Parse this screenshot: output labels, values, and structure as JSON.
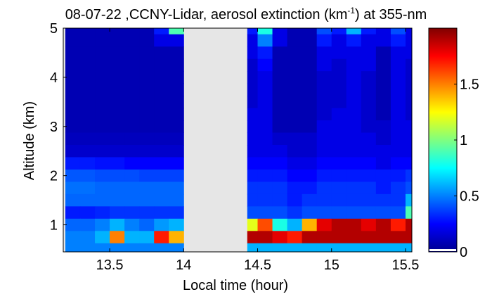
{
  "chart_data": {
    "type": "heatmap",
    "title": {
      "main": "08-07-22 ,CCNY-Lidar, aerosol extinction (km",
      "sup": "-1",
      "tail": ") at 355-nm"
    },
    "xlabel": "Local time (hour)",
    "ylabel": "Altitude (km)",
    "xlim": [
      13.186,
      15.543
    ],
    "ylim": [
      0.45,
      5
    ],
    "clim": [
      0,
      2
    ],
    "colormap": "jet",
    "missing_color": "#e6e6e6",
    "gap": [
      14.0,
      14.43
    ],
    "xticks": [
      13.5,
      14,
      14.5,
      15,
      15.5
    ],
    "xtick_labels": [
      "13.5",
      "14",
      "14.5",
      "15",
      "15.5"
    ],
    "yticks": [
      1,
      2,
      3,
      4,
      5
    ],
    "ytick_labels": [
      "1",
      "2",
      "3",
      "4",
      "5"
    ],
    "cbar_ticks": [
      0,
      0.5,
      1,
      1.5
    ],
    "cbar_tick_labels": [
      "0",
      "0.5",
      "1",
      "1.5"
    ],
    "times": [
      13.25,
      13.35,
      13.45,
      13.55,
      13.65,
      13.75,
      13.85,
      13.95,
      14.45,
      14.55,
      14.65,
      14.75,
      14.85,
      14.95,
      15.05,
      15.15,
      15.25,
      15.35,
      15.45,
      15.55
    ],
    "altitudes": [
      5.0,
      4.75,
      4.5,
      4.25,
      4.0,
      3.75,
      3.5,
      3.25,
      3.0,
      2.75,
      2.5,
      2.25,
      2.0,
      1.75,
      1.5,
      1.25,
      1.0,
      0.75,
      0.5
    ],
    "values": [
      [
        0.1,
        0.1,
        0.1,
        0.1,
        0.1,
        0.1,
        0.3,
        0.9,
        0.3,
        0.8,
        0.2,
        0.1,
        0.1,
        0.4,
        0.3,
        0.6,
        0.3,
        0.2,
        0.4,
        0.2
      ],
      [
        0.1,
        0.1,
        0.1,
        0.1,
        0.1,
        0.1,
        0.2,
        0.2,
        0.2,
        0.5,
        0.2,
        0.1,
        0.1,
        0.3,
        0.2,
        0.3,
        0.2,
        0.2,
        0.3,
        0.2
      ],
      [
        0.1,
        0.1,
        0.1,
        0.1,
        0.1,
        0.1,
        0.1,
        0.1,
        0.2,
        0.3,
        0.1,
        0.1,
        0.1,
        0.2,
        0.2,
        0.2,
        0.2,
        0.1,
        0.2,
        0.2
      ],
      [
        0.1,
        0.1,
        0.1,
        0.1,
        0.1,
        0.1,
        0.1,
        0.1,
        0.15,
        0.25,
        0.1,
        0.1,
        0.1,
        0.2,
        0.15,
        0.2,
        0.2,
        0.1,
        0.2,
        0.15
      ],
      [
        0.1,
        0.1,
        0.1,
        0.1,
        0.1,
        0.1,
        0.1,
        0.1,
        0.15,
        0.2,
        0.1,
        0.1,
        0.1,
        0.15,
        0.15,
        0.2,
        0.15,
        0.1,
        0.2,
        0.15
      ],
      [
        0.1,
        0.1,
        0.1,
        0.1,
        0.1,
        0.1,
        0.1,
        0.1,
        0.15,
        0.2,
        0.1,
        0.1,
        0.1,
        0.15,
        0.15,
        0.2,
        0.15,
        0.1,
        0.2,
        0.15
      ],
      [
        0.1,
        0.1,
        0.1,
        0.1,
        0.1,
        0.1,
        0.1,
        0.1,
        0.15,
        0.2,
        0.1,
        0.1,
        0.1,
        0.15,
        0.15,
        0.2,
        0.15,
        0.1,
        0.2,
        0.15
      ],
      [
        0.1,
        0.1,
        0.1,
        0.1,
        0.1,
        0.1,
        0.1,
        0.1,
        0.2,
        0.2,
        0.1,
        0.1,
        0.1,
        0.15,
        0.2,
        0.2,
        0.15,
        0.1,
        0.2,
        0.15
      ],
      [
        0.1,
        0.1,
        0.1,
        0.1,
        0.1,
        0.1,
        0.1,
        0.1,
        0.2,
        0.2,
        0.1,
        0.1,
        0.1,
        0.2,
        0.2,
        0.2,
        0.15,
        0.15,
        0.2,
        0.2
      ],
      [
        0.12,
        0.12,
        0.12,
        0.12,
        0.12,
        0.12,
        0.12,
        0.12,
        0.2,
        0.2,
        0.15,
        0.15,
        0.15,
        0.2,
        0.2,
        0.2,
        0.2,
        0.15,
        0.2,
        0.2
      ],
      [
        0.15,
        0.15,
        0.15,
        0.15,
        0.15,
        0.15,
        0.15,
        0.15,
        0.2,
        0.2,
        0.2,
        0.15,
        0.15,
        0.2,
        0.2,
        0.2,
        0.2,
        0.2,
        0.2,
        0.2
      ],
      [
        0.3,
        0.3,
        0.28,
        0.28,
        0.25,
        0.25,
        0.25,
        0.25,
        0.25,
        0.25,
        0.25,
        0.2,
        0.2,
        0.25,
        0.25,
        0.25,
        0.25,
        0.2,
        0.25,
        0.25
      ],
      [
        0.42,
        0.42,
        0.4,
        0.4,
        0.4,
        0.38,
        0.38,
        0.38,
        0.3,
        0.3,
        0.3,
        0.25,
        0.25,
        0.3,
        0.3,
        0.3,
        0.3,
        0.3,
        0.3,
        0.35
      ],
      [
        0.47,
        0.47,
        0.45,
        0.45,
        0.45,
        0.45,
        0.45,
        0.45,
        0.35,
        0.35,
        0.35,
        0.3,
        0.3,
        0.35,
        0.35,
        0.35,
        0.35,
        0.3,
        0.35,
        0.4
      ],
      [
        0.45,
        0.45,
        0.45,
        0.45,
        0.45,
        0.45,
        0.45,
        0.45,
        0.35,
        0.35,
        0.35,
        0.3,
        0.35,
        0.35,
        0.35,
        0.35,
        0.35,
        0.35,
        0.35,
        0.6
      ],
      [
        0.3,
        0.3,
        0.32,
        0.35,
        0.35,
        0.35,
        0.35,
        0.35,
        0.4,
        0.4,
        0.4,
        0.35,
        0.4,
        0.4,
        0.4,
        0.4,
        0.4,
        0.4,
        0.4,
        0.9
      ],
      [
        0.45,
        0.45,
        0.5,
        0.6,
        0.5,
        0.45,
        0.55,
        0.6,
        1.2,
        1.6,
        0.8,
        0.6,
        1.4,
        1.8,
        1.9,
        1.9,
        1.8,
        1.9,
        1.7,
        1.9
      ],
      [
        0.5,
        0.5,
        0.6,
        1.5,
        0.6,
        0.6,
        1.7,
        1.4,
        1.9,
        1.9,
        1.8,
        1.7,
        1.9,
        1.9,
        1.9,
        1.9,
        1.9,
        1.9,
        1.9,
        1.9
      ],
      [
        0.5,
        0.5,
        0.5,
        0.5,
        0.5,
        0.5,
        0.5,
        0.5,
        0.6,
        0.6,
        0.6,
        0.6,
        0.6,
        0.6,
        0.6,
        0.6,
        0.6,
        0.6,
        0.6,
        0.6
      ]
    ]
  }
}
